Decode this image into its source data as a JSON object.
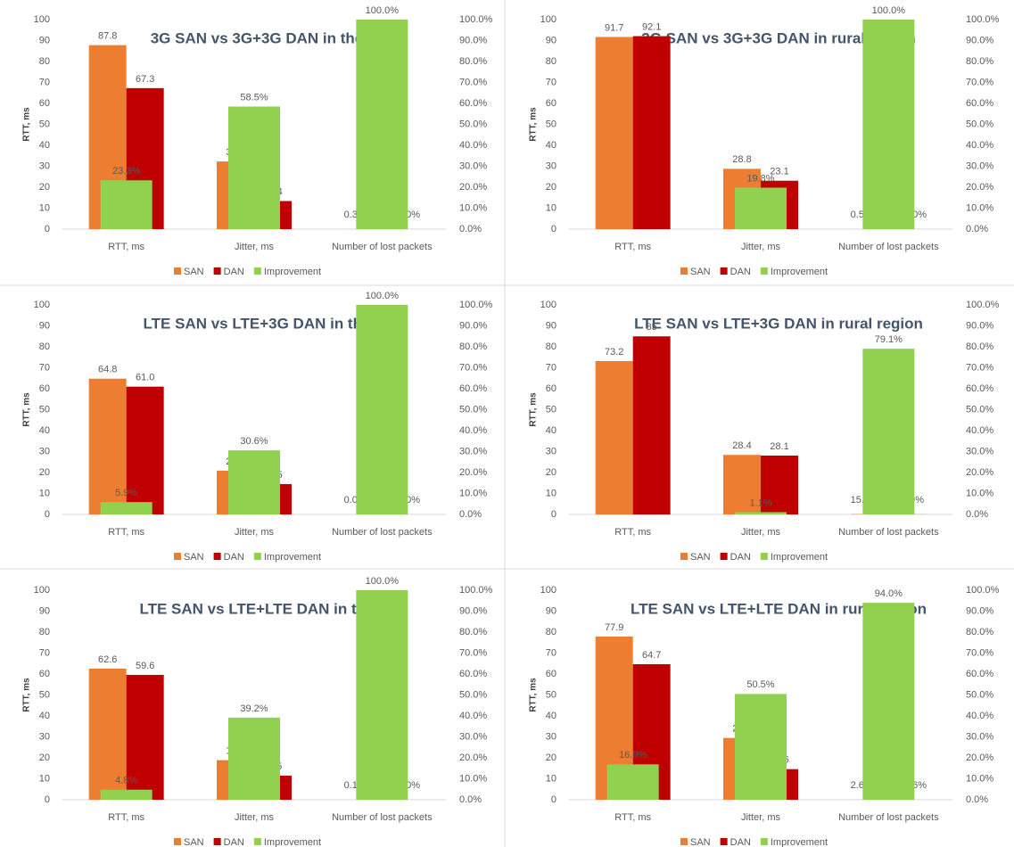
{
  "chart_data": [
    {
      "type": "bar",
      "title": "3G SAN vs 3G+3G DAN in the city",
      "y_label": "RTT, ms",
      "categories": [
        "RTT, ms",
        "Jitter, ms",
        "Number of lost packets"
      ],
      "ylim": [
        0,
        100
      ],
      "yticks": [
        0,
        10,
        20,
        30,
        40,
        50,
        60,
        70,
        80,
        90,
        100
      ],
      "y2lim": [
        0,
        100
      ],
      "y2ticks": [
        {
          "value": 0,
          "label": "0.0%"
        },
        {
          "value": 10,
          "label": "10.0%"
        },
        {
          "value": 20,
          "label": "20.0%"
        },
        {
          "value": 30,
          "label": "30.0%"
        },
        {
          "value": 40,
          "label": "40.0%"
        },
        {
          "value": 50,
          "label": "50.0%"
        },
        {
          "value": 60,
          "label": "60.0%"
        },
        {
          "value": 70,
          "label": "70.0%"
        },
        {
          "value": 80,
          "label": "80.0%"
        },
        {
          "value": 90,
          "label": "90.0%"
        },
        {
          "value": 100,
          "label": "100.0%"
        }
      ],
      "series": [
        {
          "name": "SAN",
          "color": "#ed7d31",
          "values": [
            87.8,
            32.3,
            0.003831
          ],
          "value_labels": [
            "87.8",
            "32.3",
            "0.3831%"
          ]
        },
        {
          "name": "DAN",
          "color": "#c00000",
          "values": [
            67.3,
            13.4,
            0
          ],
          "value_labels": [
            "67.3",
            "13.4",
            "0.0000%"
          ]
        },
        {
          "name": "Improvement",
          "color": "#92d050",
          "axis": "y2",
          "values": [
            23.3,
            58.5,
            100.0
          ],
          "value_labels": [
            "23.3%",
            "58.5%",
            "100.0%"
          ]
        }
      ]
    },
    {
      "type": "bar",
      "title": "3G SAN vs 3G+3G DAN in rural region",
      "y_label": "RTT, ms",
      "categories": [
        "RTT, ms",
        "Jitter, ms",
        "Number of lost packets"
      ],
      "ylim": [
        0,
        100
      ],
      "yticks": [
        0,
        10,
        20,
        30,
        40,
        50,
        60,
        70,
        80,
        90,
        100
      ],
      "y2lim": [
        0,
        100
      ],
      "y2ticks": [
        {
          "value": 0,
          "label": "0.0%"
        },
        {
          "value": 10,
          "label": "10.0%"
        },
        {
          "value": 20,
          "label": "20.0%"
        },
        {
          "value": 30,
          "label": "30.0%"
        },
        {
          "value": 40,
          "label": "40.0%"
        },
        {
          "value": 50,
          "label": "50.0%"
        },
        {
          "value": 60,
          "label": "60.0%"
        },
        {
          "value": 70,
          "label": "70.0%"
        },
        {
          "value": 80,
          "label": "80.0%"
        },
        {
          "value": 90,
          "label": "90.0%"
        },
        {
          "value": 100,
          "label": "100.0%"
        }
      ],
      "series": [
        {
          "name": "SAN",
          "color": "#ed7d31",
          "values": [
            91.7,
            28.8,
            0.005654
          ],
          "value_labels": [
            "91.7",
            "28.8",
            "0.5654%"
          ]
        },
        {
          "name": "DAN",
          "color": "#c00000",
          "values": [
            92.1,
            23.1,
            0
          ],
          "value_labels": [
            "92.1",
            "23.1",
            "0.0000%"
          ]
        },
        {
          "name": "Improvement",
          "color": "#92d050",
          "axis": "y2",
          "values": [
            null,
            19.8,
            100.0
          ],
          "value_labels": [
            null,
            "19.8%",
            "100.0%"
          ]
        }
      ]
    },
    {
      "type": "bar",
      "title": "LTE SAN vs LTE+3G DAN in the city",
      "y_label": "RTT, ms",
      "categories": [
        "RTT, ms",
        "Jitter, ms",
        "Number of lost packets"
      ],
      "ylim": [
        0,
        100
      ],
      "yticks": [
        0,
        10,
        20,
        30,
        40,
        50,
        60,
        70,
        80,
        90,
        100
      ],
      "y2lim": [
        0,
        100
      ],
      "y2ticks": [
        {
          "value": 0,
          "label": "0.0%"
        },
        {
          "value": 10,
          "label": "10.0%"
        },
        {
          "value": 20,
          "label": "20.0%"
        },
        {
          "value": 30,
          "label": "30.0%"
        },
        {
          "value": 40,
          "label": "40.0%"
        },
        {
          "value": 50,
          "label": "50.0%"
        },
        {
          "value": 60,
          "label": "60.0%"
        },
        {
          "value": 70,
          "label": "70.0%"
        },
        {
          "value": 80,
          "label": "80.0%"
        },
        {
          "value": 90,
          "label": "90.0%"
        },
        {
          "value": 100,
          "label": "100.0%"
        }
      ],
      "series": [
        {
          "name": "SAN",
          "color": "#ed7d31",
          "values": [
            64.8,
            20.9,
            0.000303
          ],
          "value_labels": [
            "64.8",
            "20.9",
            "0.0303%"
          ]
        },
        {
          "name": "DAN",
          "color": "#c00000",
          "values": [
            61.0,
            14.5,
            0
          ],
          "value_labels": [
            "61.0",
            "14.5",
            "0.0000%"
          ]
        },
        {
          "name": "Improvement",
          "color": "#92d050",
          "axis": "y2",
          "values": [
            5.9,
            30.6,
            100.0
          ],
          "value_labels": [
            "5.9%",
            "30.6%",
            "100.0%"
          ]
        }
      ]
    },
    {
      "type": "bar",
      "title": "LTE SAN vs LTE+3G DAN in rural region",
      "y_label": "RTT, ms",
      "categories": [
        "RTT, ms",
        "Jitter, ms",
        "Number of lost packets"
      ],
      "ylim": [
        0,
        100
      ],
      "yticks": [
        0,
        10,
        20,
        30,
        40,
        50,
        60,
        70,
        80,
        90,
        100
      ],
      "y2lim": [
        0,
        100
      ],
      "y2ticks": [
        {
          "value": 0,
          "label": "0.0%"
        },
        {
          "value": 10,
          "label": "10.0%"
        },
        {
          "value": 20,
          "label": "20.0%"
        },
        {
          "value": 30,
          "label": "30.0%"
        },
        {
          "value": 40,
          "label": "40.0%"
        },
        {
          "value": 50,
          "label": "50.0%"
        },
        {
          "value": 60,
          "label": "60.0%"
        },
        {
          "value": 70,
          "label": "70.0%"
        },
        {
          "value": 80,
          "label": "80.0%"
        },
        {
          "value": 90,
          "label": "90.0%"
        },
        {
          "value": 100,
          "label": "100.0%"
        }
      ],
      "series": [
        {
          "name": "SAN",
          "color": "#ed7d31",
          "values": [
            73.2,
            28.4,
            0.1553
          ],
          "value_labels": [
            "73.2",
            "28.4",
            "15.530%"
          ]
        },
        {
          "name": "DAN",
          "color": "#c00000",
          "values": [
            85,
            28.1,
            0.03249
          ],
          "value_labels": [
            "85",
            "28.1",
            "3.249%"
          ]
        },
        {
          "name": "Improvement",
          "color": "#92d050",
          "axis": "y2",
          "values": [
            null,
            1.1,
            79.1
          ],
          "value_labels": [
            null,
            "1.1%",
            "79.1%"
          ]
        }
      ]
    },
    {
      "type": "bar",
      "title": "LTE SAN vs LTE+LTE DAN in the city",
      "y_label": "RTT, ms",
      "categories": [
        "RTT, ms",
        "Jitter, ms",
        "Number of lost packets"
      ],
      "ylim": [
        0,
        100
      ],
      "yticks": [
        0,
        10,
        20,
        30,
        40,
        50,
        60,
        70,
        80,
        90,
        100
      ],
      "y2lim": [
        0,
        100
      ],
      "y2ticks": [
        {
          "value": 0,
          "label": "0.0%"
        },
        {
          "value": 10,
          "label": "10.0%"
        },
        {
          "value": 20,
          "label": "20.0%"
        },
        {
          "value": 30,
          "label": "30.0%"
        },
        {
          "value": 40,
          "label": "40.0%"
        },
        {
          "value": 50,
          "label": "50.0%"
        },
        {
          "value": 60,
          "label": "60.0%"
        },
        {
          "value": 70,
          "label": "70.0%"
        },
        {
          "value": 80,
          "label": "80.0%"
        },
        {
          "value": 90,
          "label": "90.0%"
        },
        {
          "value": 100,
          "label": "100.0%"
        }
      ],
      "series": [
        {
          "name": "SAN",
          "color": "#ed7d31",
          "values": [
            62.6,
            18.9,
            0.001022
          ],
          "value_labels": [
            "62.6",
            "18.9",
            "0.1022%"
          ]
        },
        {
          "name": "DAN",
          "color": "#c00000",
          "values": [
            59.6,
            11.5,
            0
          ],
          "value_labels": [
            "59.6",
            "11.5",
            "0.0000%"
          ]
        },
        {
          "name": "Improvement",
          "color": "#92d050",
          "axis": "y2",
          "values": [
            4.8,
            39.2,
            100.0
          ],
          "value_labels": [
            "4.8%",
            "39.2%",
            "100.0%"
          ]
        }
      ]
    },
    {
      "type": "bar",
      "title": "LTE SAN vs LTE+LTE DAN in rural region",
      "y_label": "RTT, ms",
      "categories": [
        "RTT, ms",
        "Jitter, ms",
        "Number of lost packets"
      ],
      "ylim": [
        0,
        100
      ],
      "yticks": [
        0,
        10,
        20,
        30,
        40,
        50,
        60,
        70,
        80,
        90,
        100
      ],
      "y2lim": [
        0,
        100
      ],
      "y2ticks": [
        {
          "value": 0,
          "label": "0.0%"
        },
        {
          "value": 10,
          "label": "10.0%"
        },
        {
          "value": 20,
          "label": "20.0%"
        },
        {
          "value": 30,
          "label": "30.0%"
        },
        {
          "value": 40,
          "label": "40.0%"
        },
        {
          "value": 50,
          "label": "50.0%"
        },
        {
          "value": 60,
          "label": "60.0%"
        },
        {
          "value": 70,
          "label": "70.0%"
        },
        {
          "value": 80,
          "label": "80.0%"
        },
        {
          "value": 90,
          "label": "90.0%"
        },
        {
          "value": 100,
          "label": "100.0%"
        }
      ],
      "series": [
        {
          "name": "SAN",
          "color": "#ed7d31",
          "values": [
            77.9,
            29.5,
            0.02648
          ],
          "value_labels": [
            "77.9",
            "29.5",
            "2.6480%"
          ]
        },
        {
          "name": "DAN",
          "color": "#c00000",
          "values": [
            64.7,
            14.6,
            0.001586
          ],
          "value_labels": [
            "64.7",
            "14.6",
            "0.1586%"
          ]
        },
        {
          "name": "Improvement",
          "color": "#92d050",
          "axis": "y2",
          "values": [
            16.9,
            50.5,
            94.0
          ],
          "value_labels": [
            "16.9%",
            "50.5%",
            "94.0%"
          ]
        }
      ]
    }
  ]
}
